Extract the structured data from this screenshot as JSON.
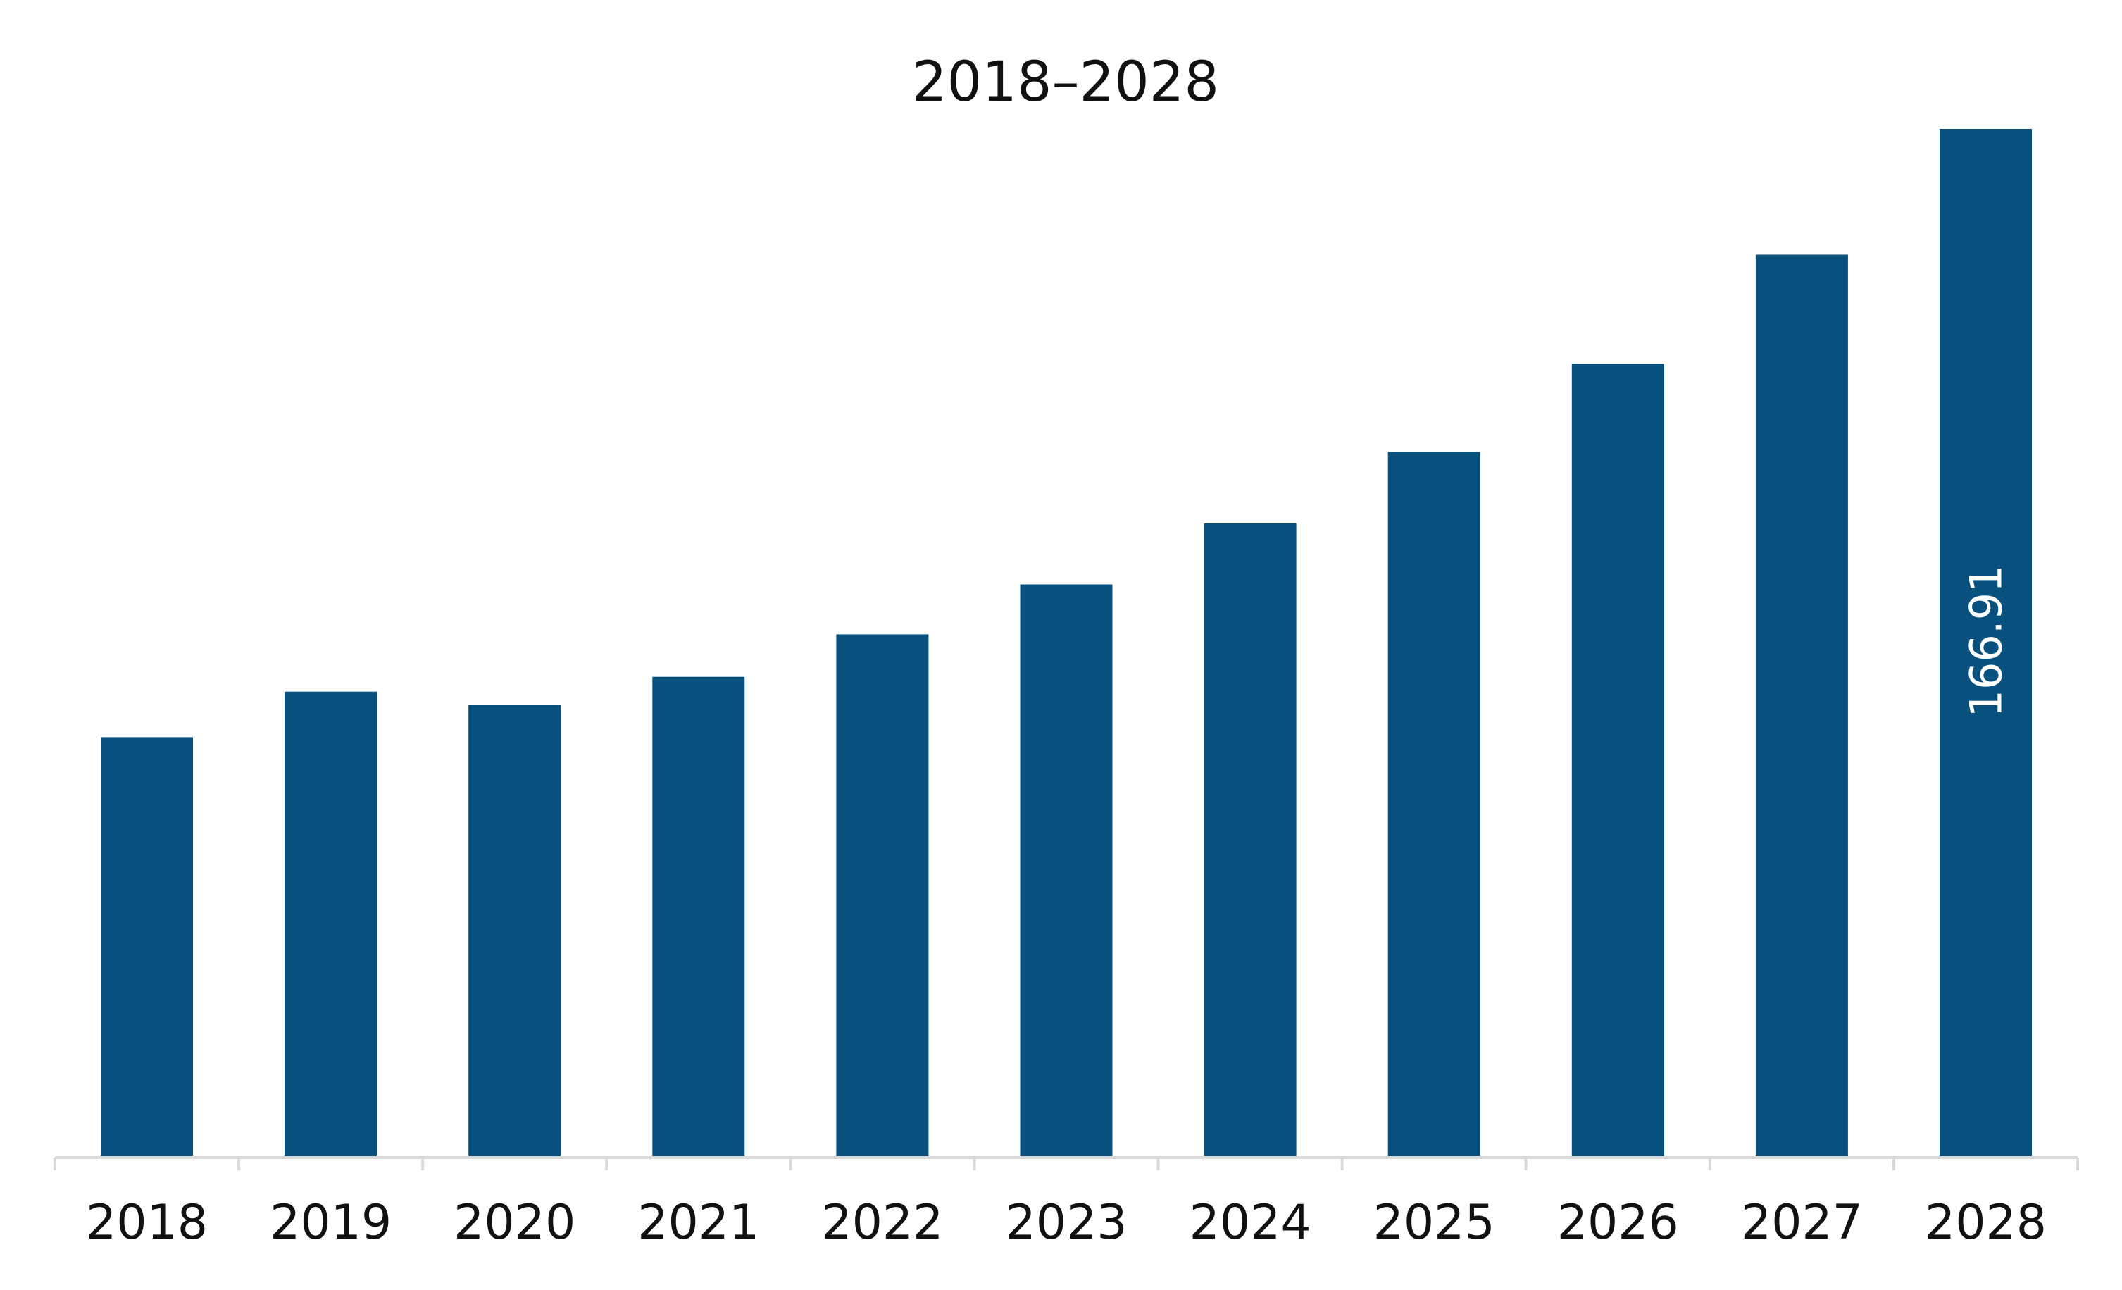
{
  "chart_data": {
    "type": "bar",
    "title": "2018–2028",
    "xlabel": "",
    "ylabel": "",
    "categories": [
      "2018",
      "2019",
      "2020",
      "2021",
      "2022",
      "2023",
      "2024",
      "2025",
      "2026",
      "2027",
      "2028"
    ],
    "values": [
      68.2,
      75.6,
      73.5,
      78.0,
      84.9,
      93.0,
      102.9,
      114.5,
      128.8,
      146.5,
      166.91
    ],
    "data_labels": [
      {
        "category": "2028",
        "text": "166.91"
      }
    ],
    "ylim": [
      0,
      166.91
    ],
    "y_axis_visible": false,
    "grid": false,
    "legend": "none",
    "bar_color": "#08517f",
    "axis_color": "#d9d9d9"
  }
}
